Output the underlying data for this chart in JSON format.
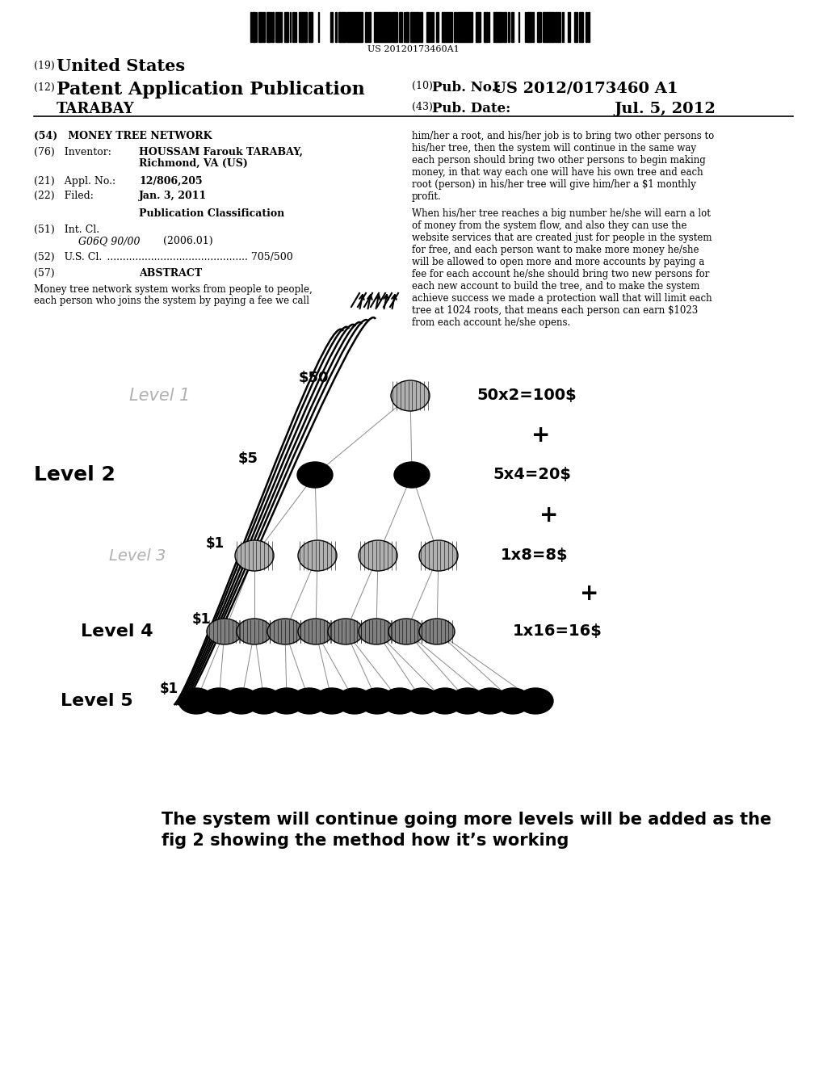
{
  "barcode_text": "US 20120173460A1",
  "title_19": "(19) United States",
  "title_12": "(12) Patent Application Publication",
  "title_10": "(10) Pub. No.: US 2012/0173460 A1",
  "applicant": "TARABAY",
  "pub_date_label": "(43) Pub. Date:",
  "pub_date": "Jul. 5, 2012",
  "field_54": "(54)   MONEY TREE NETWORK",
  "field_76_label": "(76)   Inventor:",
  "field_76_name": "HOUSSAM Farouk TARABAY,",
  "field_76_addr": "Richmond, VA (US)",
  "field_21_label": "(21)   Appl. No.:",
  "field_21_value": "12/806,205",
  "field_22_label": "(22)   Filed:",
  "field_22_value": "Jan. 3, 2011",
  "pub_class_header": "Publication Classification",
  "field_51_label": "(51)   Int. Cl.",
  "field_51_class": "G06Q 90/00",
  "field_51_year": "(2006.01)",
  "field_52_prefix": "(52)   U.S. Cl.",
  "field_52_value": "705/500",
  "field_57_label": "(57)",
  "field_57_header": "ABSTRACT",
  "abstract_left1": "Money tree network system works from people to people,",
  "abstract_left2": "each person who joins the system by paying a fee we call",
  "abstract_right_p1": "him/her a root, and his/her job is to bring two other persons to\nhis/her tree, then the system will continue in the same way\neach person should bring two other persons to begin making\nmoney, in that way each one will have his own tree and each\nroot (person) in his/her tree will give him/her a $1 monthly\nprofit.",
  "abstract_right_p2": "When his/her tree reaches a big number he/she will earn a lot\nof money from the system flow, and also they can use the\nwebsite services that are created just for people in the system\nfor free, and each person want to make more money he/she\nwill be allowed to open more and more accounts by paying a\nfee for each account he/she should bring two new persons for\neach new account to build the tree, and to make the system\nachieve success we made a protection wall that will limit each\ntree at 1024 roots, that means each person can earn $1023\nfrom each account he/she opens.",
  "caption_line1": "The system will continue going more levels will be added as the",
  "caption_line2": "fig 2 showing the method how it’s working",
  "level1_label": "Level 1",
  "level2_label": "Level 2",
  "level3_label": "Level 3",
  "level4_label": "Level 4",
  "level5_label": "Level 5",
  "level1_formula": "50x2=100$",
  "level2_formula": "5x4=20$",
  "level3_formula": "1x8=8$",
  "level4_formula": "1x16=16$",
  "level1_price": "$50",
  "level2_price": "$5",
  "level3_price": "$1",
  "level4_price": "$1",
  "level5_price": "$1",
  "bg_color": "#ffffff"
}
